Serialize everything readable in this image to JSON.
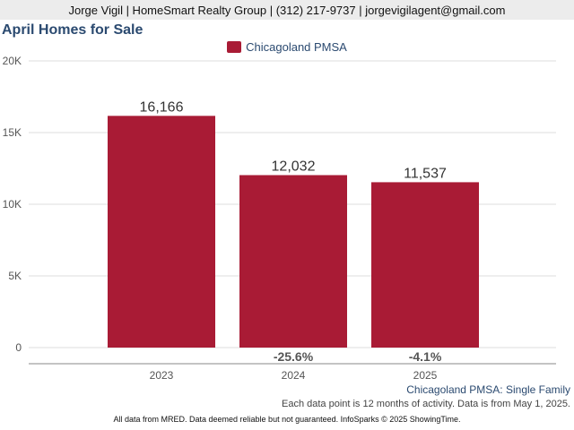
{
  "header": {
    "contact": "Jorge Vigil | HomeSmart Realty Group | (312) 217-9737 | jorgevigilagent@gmail.com"
  },
  "chart_data": {
    "type": "bar",
    "title": "April Homes for Sale",
    "categories": [
      "2023",
      "2024",
      "2025"
    ],
    "series": [
      {
        "name": "Chicagoland PMSA",
        "values": [
          16166,
          12032,
          11537
        ],
        "color": "#a91b35"
      }
    ],
    "value_labels": [
      "16,166",
      "12,032",
      "11,537"
    ],
    "change_labels": [
      "",
      "-25.6%",
      "-4.1%"
    ],
    "yticks": [
      "0",
      "5K",
      "10K",
      "15K",
      "20K"
    ],
    "ylim": [
      0,
      20000
    ],
    "grid": true,
    "legend_position": "top-center"
  },
  "subtitle": "Chicagoland PMSA: Single Family",
  "note": "Each data point is 12 months of activity. Data is from May 1, 2025.",
  "footer": "All data from MRED. Data deemed reliable but not guaranteed. InfoSparks © 2025 ShowingTime."
}
